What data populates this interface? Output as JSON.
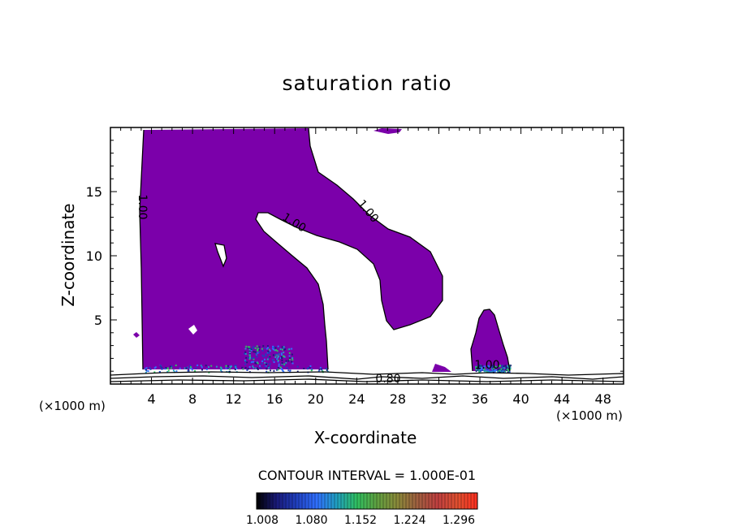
{
  "chart_data": {
    "type": "contour",
    "title": "saturation ratio",
    "xlabel": "X-coordinate",
    "ylabel": "Z-coordinate",
    "x_unit": "(×1000 m)",
    "xlim": [
      0,
      50
    ],
    "ylim": [
      0,
      20
    ],
    "x_ticks": [
      4,
      8,
      12,
      16,
      20,
      24,
      28,
      32,
      36,
      40,
      44,
      48
    ],
    "y_ticks": [
      5,
      10,
      15
    ],
    "contour_interval_text": "CONTOUR INTERVAL = 1.000E-01",
    "contour_labels": [
      "1.00",
      "1.00",
      "1.00",
      "1.00",
      "0.80"
    ],
    "colorbar": {
      "tick_labels": [
        "1.008",
        "1.080",
        "1.152",
        "1.224",
        "1.296"
      ],
      "colors": [
        "#000000",
        "#1a1a7a",
        "#2040c0",
        "#3070ff",
        "#20a0c0",
        "#30c060",
        "#60a040",
        "#8a8a3a",
        "#a06040",
        "#c04040",
        "#e05030",
        "#ff3020"
      ]
    },
    "fill_color": "#7b00aa",
    "regions": [
      {
        "name": "main-cloud",
        "level": 1.008
      },
      {
        "name": "anvil-lobe",
        "level": 1.008
      },
      {
        "name": "small-cell",
        "level": 1.008
      }
    ]
  }
}
